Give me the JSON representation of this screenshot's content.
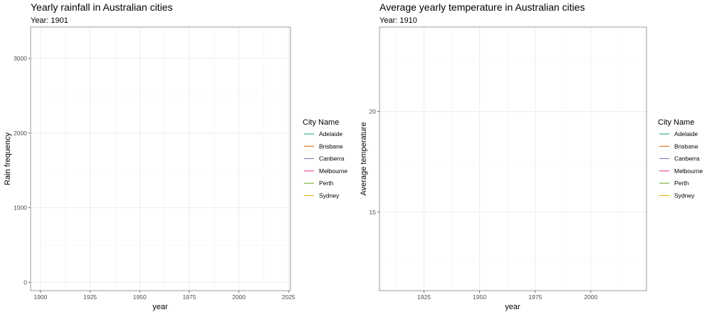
{
  "chart_data": [
    {
      "type": "line",
      "title": "Yearly rainfall in Australian cities",
      "subtitle": "Year: 1901",
      "xlabel": "year",
      "ylabel": "Rain frequency",
      "xlim": [
        1895,
        2026
      ],
      "ylim": [
        -110,
        3420
      ],
      "x_ticks": [
        1900,
        1925,
        1950,
        1975,
        2000,
        2025
      ],
      "y_ticks": [
        0,
        1000,
        2000,
        3000
      ],
      "grid": true,
      "legend": {
        "title": "City Name",
        "position": "right"
      },
      "series": [
        {
          "name": "Adelaide",
          "color": "#1B9E77",
          "values": []
        },
        {
          "name": "Brisbane",
          "color": "#D95F02",
          "values": []
        },
        {
          "name": "Canberra",
          "color": "#7570B3",
          "values": []
        },
        {
          "name": "Melbourne",
          "color": "#E7298A",
          "values": []
        },
        {
          "name": "Perth",
          "color": "#66A61E",
          "values": []
        },
        {
          "name": "Sydney",
          "color": "#E6AB02",
          "values": []
        }
      ]
    },
    {
      "type": "line",
      "title": "Average yearly temperature in Australian cities",
      "subtitle": "Year: 1910",
      "xlabel": "year",
      "ylabel": "Average temperature",
      "xlim": [
        1905,
        2025
      ],
      "ylim": [
        11.1,
        24.2
      ],
      "x_ticks": [
        1925,
        1950,
        1975,
        2000
      ],
      "y_ticks": [
        15,
        20
      ],
      "grid": true,
      "legend": {
        "title": "City Name",
        "position": "right"
      },
      "series": [
        {
          "name": "Adelaide",
          "color": "#1B9E77",
          "values": []
        },
        {
          "name": "Brisbane",
          "color": "#D95F02",
          "values": []
        },
        {
          "name": "Canberra",
          "color": "#7570B3",
          "values": []
        },
        {
          "name": "Melbourne",
          "color": "#E7298A",
          "values": []
        },
        {
          "name": "Perth",
          "color": "#66A61E",
          "values": []
        },
        {
          "name": "Sydney",
          "color": "#E6AB02",
          "values": []
        }
      ]
    }
  ]
}
